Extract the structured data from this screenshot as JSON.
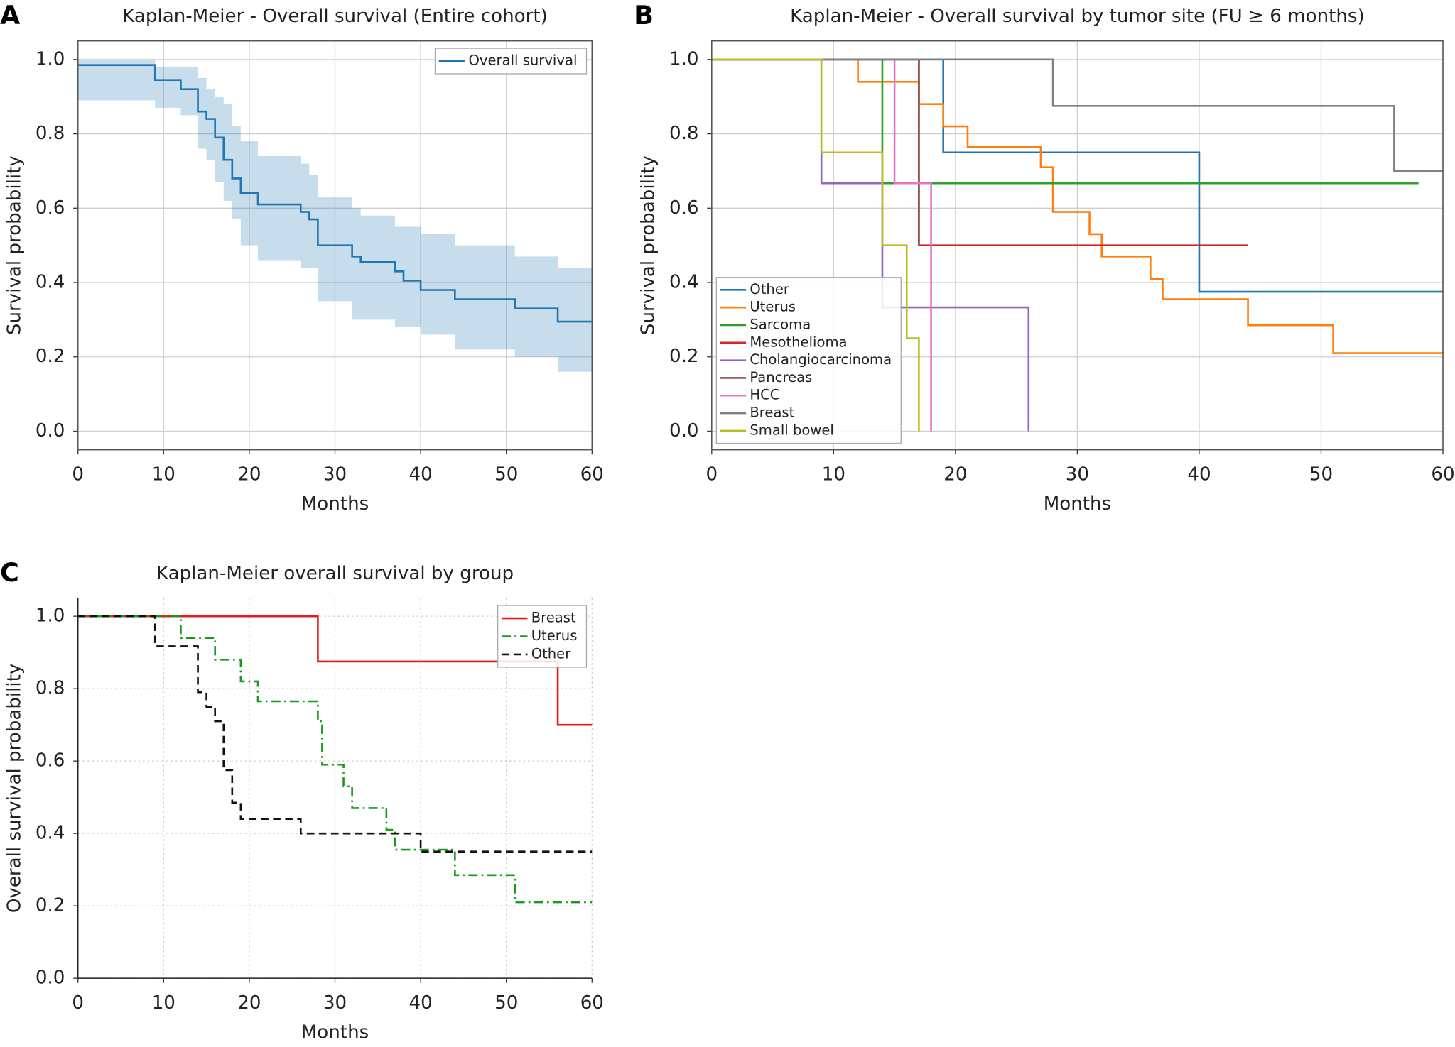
{
  "chart_data": [
    {
      "type": "step",
      "panel": "A",
      "title": "Kaplan-Meier - Overall survival (Entire cohort)",
      "x_label": "Months",
      "y_label": "Survival probability",
      "xlim": [
        0,
        60
      ],
      "ylim": [
        -0.05,
        1.05
      ],
      "xticks": [
        0,
        10,
        20,
        30,
        40,
        50,
        60
      ],
      "yticks": [
        {
          "value": 0,
          "label": "0.0"
        },
        0.2,
        0.4,
        0.6,
        0.8,
        {
          "value": 1,
          "label": "1.0"
        }
      ],
      "grid": true,
      "grid_style": "solid",
      "frame": "box",
      "legend": "upper right",
      "series": [
        {
          "name": "Overall survival",
          "color": "#1f77b4",
          "dash": "solid",
          "x": [
            0,
            9,
            12,
            14,
            15,
            16,
            17,
            18,
            19,
            21,
            26,
            27,
            28,
            32,
            33,
            37,
            38,
            40,
            44,
            51,
            56,
            60
          ],
          "values": [
            0.985,
            0.945,
            0.92,
            0.86,
            0.84,
            0.79,
            0.73,
            0.68,
            0.64,
            0.61,
            0.59,
            0.57,
            0.5,
            0.47,
            0.455,
            0.43,
            0.405,
            0.38,
            0.355,
            0.33,
            0.295,
            0.295
          ],
          "upper": [
            1.0,
            0.98,
            0.98,
            0.95,
            0.92,
            0.9,
            0.88,
            0.82,
            0.78,
            0.74,
            0.72,
            0.69,
            0.63,
            0.6,
            0.58,
            0.55,
            0.55,
            0.53,
            0.5,
            0.47,
            0.44,
            0.44
          ],
          "lower": [
            0.89,
            0.87,
            0.85,
            0.76,
            0.73,
            0.67,
            0.62,
            0.57,
            0.5,
            0.46,
            0.44,
            0.44,
            0.35,
            0.3,
            0.3,
            0.28,
            0.28,
            0.26,
            0.22,
            0.2,
            0.16,
            0.16
          ]
        }
      ]
    },
    {
      "type": "step",
      "panel": "B",
      "title": "Kaplan-Meier - Overall survival by tumor site (FU ≥ 6 months)",
      "x_label": "Months",
      "y_label": "Survival probability",
      "xlim": [
        0,
        60
      ],
      "ylim": [
        -0.05,
        1.05
      ],
      "xticks": [
        0,
        10,
        20,
        30,
        40,
        50,
        60
      ],
      "yticks": [
        {
          "value": 0,
          "label": "0.0"
        },
        0.2,
        0.4,
        0.6,
        0.8,
        {
          "value": 1,
          "label": "1.0"
        }
      ],
      "grid": true,
      "grid_style": "solid",
      "frame": "box",
      "legend": "lower left",
      "series": [
        {
          "name": "Other",
          "color": "#1f77b4",
          "dash": "solid",
          "x": [
            0,
            19,
            40,
            60
          ],
          "values": [
            1,
            0.75,
            0.375,
            0.375
          ]
        },
        {
          "name": "Uterus",
          "color": "#ff7f0e",
          "dash": "solid",
          "x": [
            0,
            12,
            17,
            19,
            21,
            27,
            28,
            31,
            32,
            36,
            37,
            44,
            51,
            60
          ],
          "values": [
            1,
            0.94,
            0.88,
            0.82,
            0.765,
            0.71,
            0.59,
            0.53,
            0.47,
            0.41,
            0.355,
            0.285,
            0.21,
            0.21
          ]
        },
        {
          "name": "Sarcoma",
          "color": "#2ca02c",
          "dash": "solid",
          "x": [
            0,
            14,
            58
          ],
          "values": [
            1,
            0.667,
            0.667
          ]
        },
        {
          "name": "Mesothelioma",
          "color": "#d62728",
          "dash": "solid",
          "x": [
            0,
            17,
            44
          ],
          "values": [
            1,
            0.5,
            0.5
          ]
        },
        {
          "name": "Cholangiocarcinoma",
          "color": "#9467bd",
          "dash": "solid",
          "x": [
            0,
            9,
            14,
            26
          ],
          "values": [
            1,
            0.667,
            0.333,
            0
          ]
        },
        {
          "name": "Pancreas",
          "color": "#8c564b",
          "dash": "solid",
          "x": [
            0,
            17
          ],
          "values": [
            1,
            0.5
          ]
        },
        {
          "name": "HCC",
          "color": "#e377c2",
          "dash": "solid",
          "x": [
            0,
            15,
            18
          ],
          "values": [
            1,
            0.667,
            0
          ]
        },
        {
          "name": "Breast",
          "color": "#7f7f7f",
          "dash": "solid",
          "x": [
            0,
            28,
            56,
            60
          ],
          "values": [
            1,
            0.875,
            0.7,
            0.7
          ]
        },
        {
          "name": "Small bowel",
          "color": "#bcbd22",
          "dash": "solid",
          "x": [
            0,
            9,
            14,
            16,
            17
          ],
          "values": [
            1,
            0.75,
            0.5,
            0.25,
            0
          ]
        }
      ]
    },
    {
      "type": "step",
      "panel": "C",
      "title": "Kaplan-Meier overall survival by group",
      "x_label": "Months",
      "y_label": "Overall survival probability",
      "xlim": [
        0,
        60
      ],
      "ylim": [
        0,
        1.05
      ],
      "xticks": [
        0,
        10,
        20,
        30,
        40,
        50,
        60
      ],
      "yticks": [
        {
          "value": 0,
          "label": "0.0"
        },
        0.2,
        0.4,
        0.6,
        0.8,
        {
          "value": 1,
          "label": "1.0"
        }
      ],
      "grid": true,
      "grid_style": "dotted",
      "frame": "axes",
      "legend": "upper right",
      "series": [
        {
          "name": "Breast",
          "color": "#e41a1c",
          "dash": "solid",
          "x": [
            0,
            28,
            56,
            60
          ],
          "values": [
            1,
            0.875,
            0.7,
            0.7
          ]
        },
        {
          "name": "Uterus",
          "color": "#1a9a1a",
          "dash": "dashdot",
          "x": [
            0,
            12,
            16,
            19,
            21,
            28,
            28.5,
            31,
            32,
            36,
            37,
            44,
            51,
            60
          ],
          "values": [
            1,
            0.94,
            0.88,
            0.82,
            0.765,
            0.71,
            0.59,
            0.53,
            0.47,
            0.41,
            0.355,
            0.285,
            0.21,
            0.21
          ]
        },
        {
          "name": "Other",
          "color": "#111111",
          "dash": "dashed",
          "x": [
            0,
            9,
            14,
            15,
            16,
            17,
            18,
            19,
            26,
            40,
            60
          ],
          "values": [
            1,
            0.917,
            0.79,
            0.75,
            0.71,
            0.575,
            0.485,
            0.44,
            0.4,
            0.35,
            0.35
          ]
        }
      ]
    }
  ]
}
